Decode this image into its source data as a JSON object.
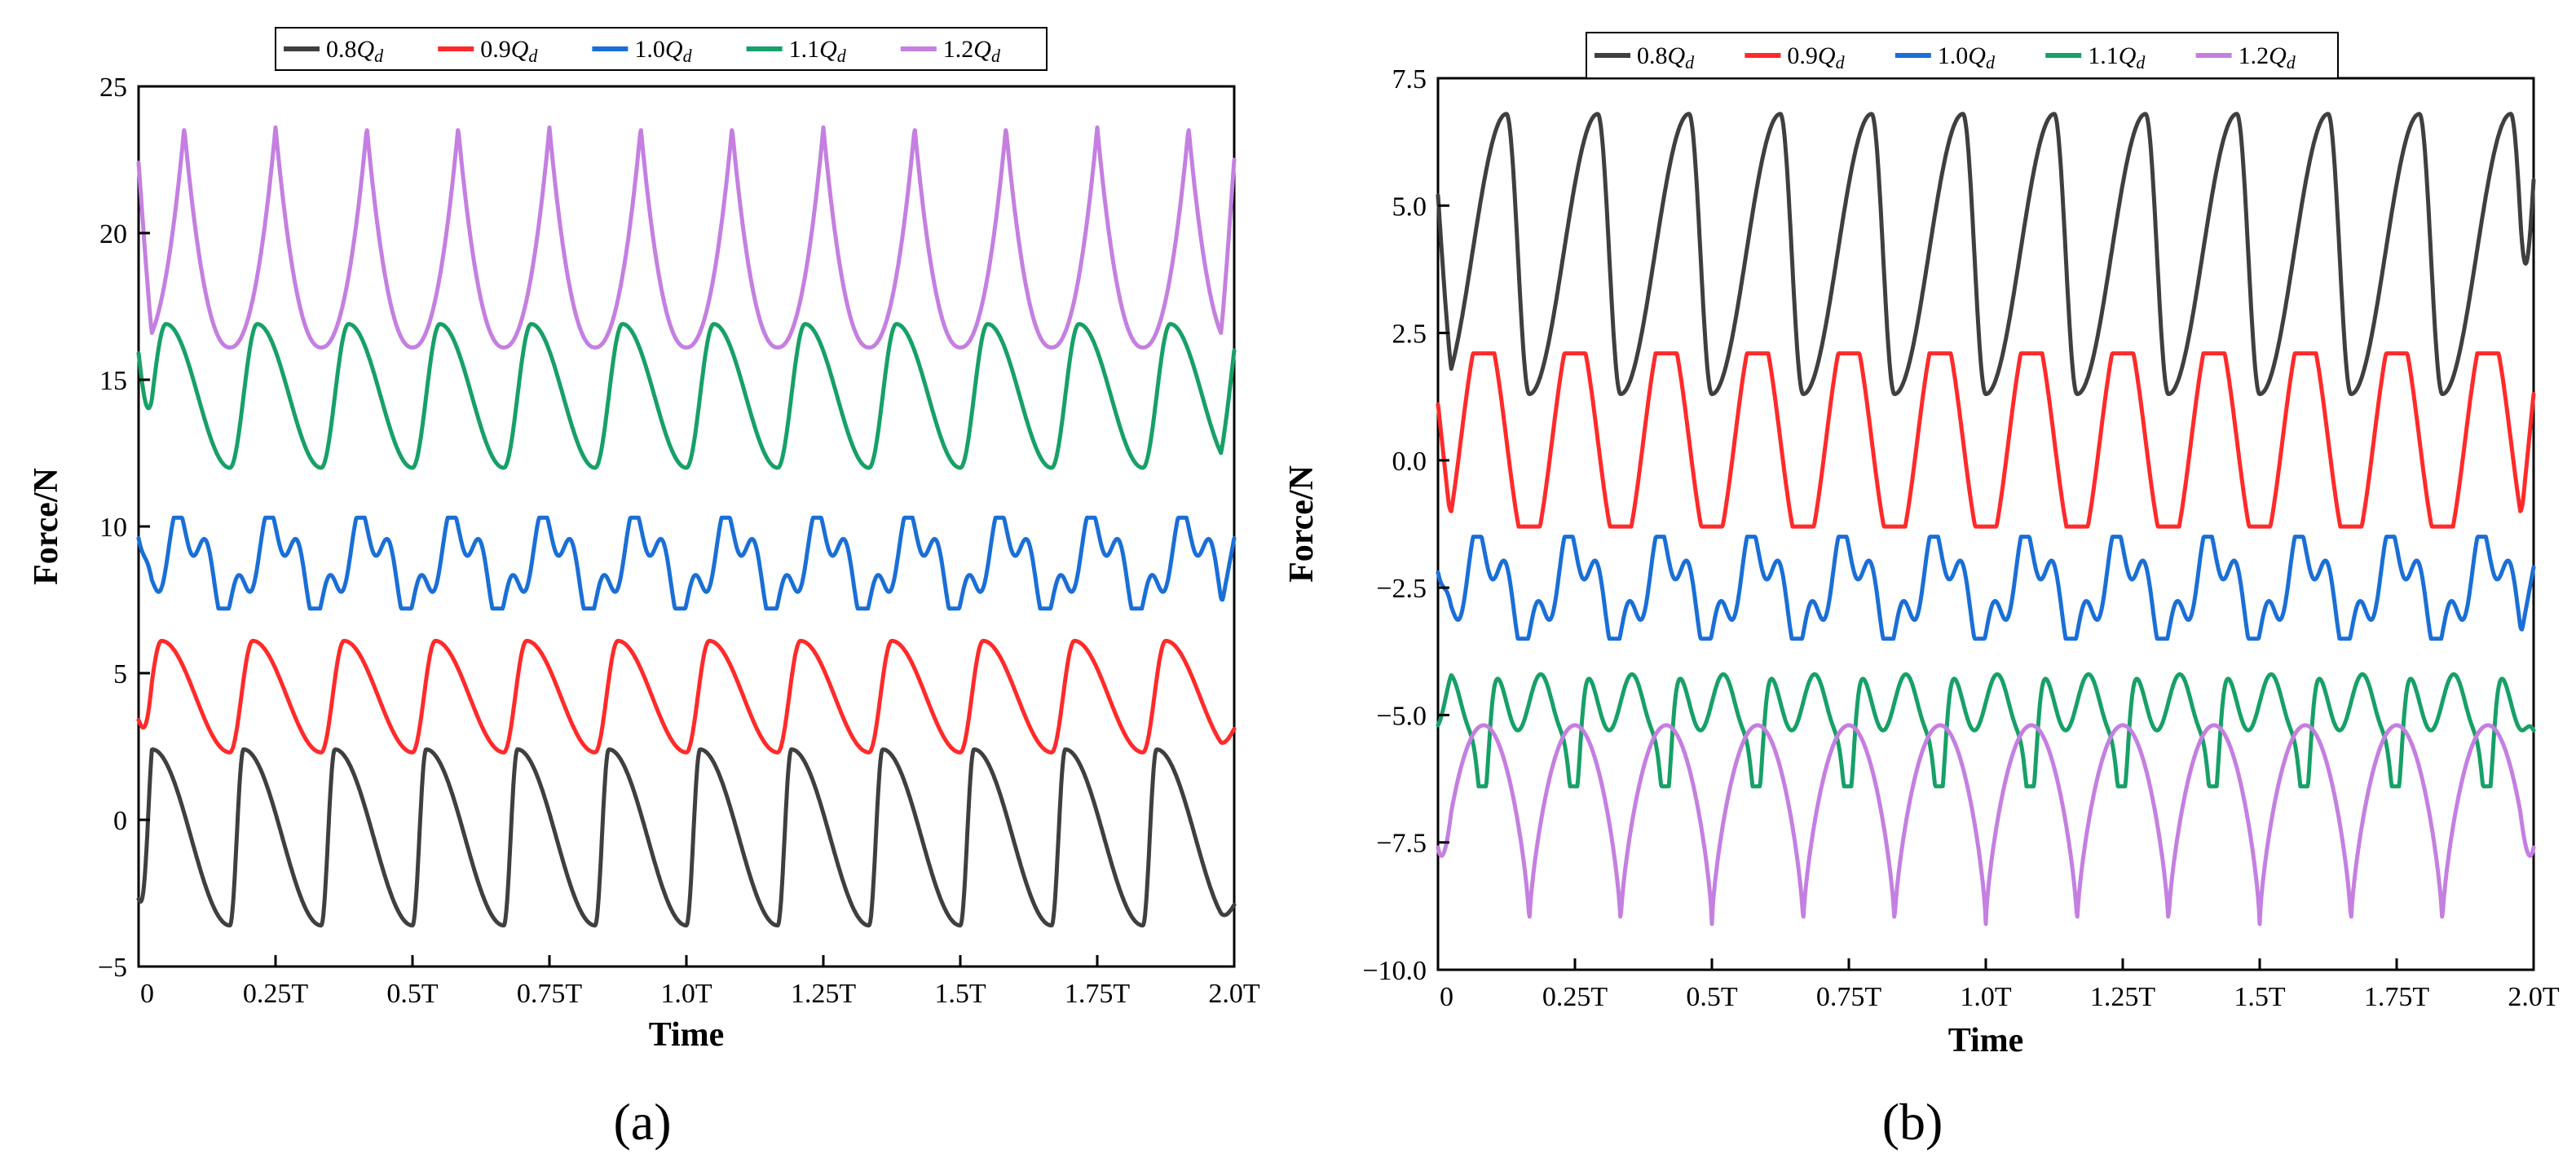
{
  "chart_data": [
    {
      "type": "line",
      "panel": "(a)",
      "xlabel": "Time",
      "ylabel": "Force/N",
      "xlim": [
        0,
        2.0
      ],
      "ylim": [
        -5,
        25
      ],
      "x_unit": "T",
      "xticks": [
        0,
        0.25,
        0.5,
        0.75,
        1.0,
        1.25,
        1.5,
        1.75,
        2.0
      ],
      "xtick_labels": [
        "0",
        "0.25T",
        "0.5T",
        "0.75T",
        "1.0T",
        "1.25T",
        "1.5T",
        "1.75T",
        "2.0T"
      ],
      "yticks": [
        -5,
        0,
        5,
        10,
        15,
        20,
        25
      ],
      "ytick_labels": [
        "−5",
        "0",
        "5",
        "10",
        "15",
        "20",
        "25"
      ],
      "legend_position": "top",
      "series": [
        {
          "name": "0.8Qd",
          "label_main": "0.8",
          "label_italic": "Q",
          "label_sub": "d",
          "color": "#3f3f3f",
          "cycles": 12,
          "min": -3.6,
          "max": 2.4,
          "peak_phase": 0.15,
          "shape": "sawtooth",
          "start": -2.7,
          "end": -2.9
        },
        {
          "name": "0.9Qd",
          "label_main": "0.9",
          "label_italic": "Q",
          "label_sub": "d",
          "color": "#ff2a2a",
          "cycles": 12,
          "min": 2.3,
          "max": 6.1,
          "peak_phase": 0.25,
          "shape": "sawtooth",
          "start": 3.4,
          "end": 3.1
        },
        {
          "name": "1.0Qd",
          "label_main": "1.0",
          "label_italic": "Q",
          "label_sub": "d",
          "color": "#1a6fd6",
          "cycles": 12,
          "min": 7.2,
          "max": 10.3,
          "peak_phase": 0.3,
          "shape": "double",
          "start": 9.6,
          "end": 9.6
        },
        {
          "name": "1.1Qd",
          "label_main": "1.1",
          "label_italic": "Q",
          "label_sub": "d",
          "color": "#17a067",
          "cycles": 12,
          "min": 12.0,
          "max": 16.9,
          "peak_phase": 0.3,
          "shape": "sawtooth",
          "start": 15.9,
          "end": 16.0
        },
        {
          "name": "1.2Qd",
          "label_main": "1.2",
          "label_italic": "Q",
          "label_sub": "d",
          "color": "#c47fe0",
          "cycles": 12,
          "min": 16.1,
          "max": 23.6,
          "peak_phase": 0.5,
          "shape": "cusp",
          "start": 22.4,
          "end": 22.5
        }
      ]
    },
    {
      "type": "line",
      "panel": "(b)",
      "xlabel": "Time",
      "ylabel": "Force/N",
      "xlim": [
        0,
        2.0
      ],
      "ylim": [
        -10,
        7.5
      ],
      "x_unit": "T",
      "xticks": [
        0,
        0.25,
        0.5,
        0.75,
        1.0,
        1.25,
        1.5,
        1.75,
        2.0
      ],
      "xtick_labels": [
        "0",
        "0.25T",
        "0.5T",
        "0.75T",
        "1.0T",
        "1.25T",
        "1.5T",
        "1.75T",
        "2.0T"
      ],
      "yticks": [
        -10,
        -7.5,
        -5,
        -2.5,
        0,
        2.5,
        5,
        7.5
      ],
      "ytick_labels": [
        "−10.0",
        "−7.5",
        "−5.0",
        "−2.5",
        "0.0",
        "2.5",
        "5.0",
        "7.5"
      ],
      "legend_position": "top",
      "series": [
        {
          "name": "0.8Qd",
          "label_main": "0.8",
          "label_italic": "Q",
          "label_sub": "d",
          "color": "#3f3f3f",
          "cycles": 12,
          "min": 1.3,
          "max": 6.8,
          "peak_phase": 0.75,
          "shape": "sawtooth",
          "start": 5.2,
          "end": 5.5
        },
        {
          "name": "0.9Qd",
          "label_main": "0.9",
          "label_italic": "Q",
          "label_sub": "d",
          "color": "#ff2a2a",
          "cycles": 12,
          "min": -1.3,
          "max": 2.1,
          "peak_phase": 0.55,
          "shape": "plateau",
          "start": 1.1,
          "end": 1.3
        },
        {
          "name": "1.0Qd",
          "label_main": "1.0",
          "label_italic": "Q",
          "label_sub": "d",
          "color": "#1a6fd6",
          "cycles": 12,
          "min": -3.5,
          "max": -1.5,
          "peak_phase": 0.45,
          "shape": "double",
          "start": -2.2,
          "end": -2.1
        },
        {
          "name": "1.1Qd",
          "label_main": "1.1",
          "label_italic": "Q",
          "label_sub": "d",
          "color": "#17a067",
          "cycles": 12,
          "min": -6.4,
          "max": -4.2,
          "peak_phase": 0.5,
          "shape": "notch",
          "start": -5.2,
          "end": -5.3
        },
        {
          "name": "1.2Qd",
          "label_main": "1.2",
          "label_italic": "Q",
          "label_sub": "d",
          "color": "#c47fe0",
          "cycles": 12,
          "min": -9.1,
          "max": -5.2,
          "peak_phase": 0.5,
          "shape": "dome",
          "start": -7.6,
          "end": -7.6
        }
      ]
    }
  ]
}
